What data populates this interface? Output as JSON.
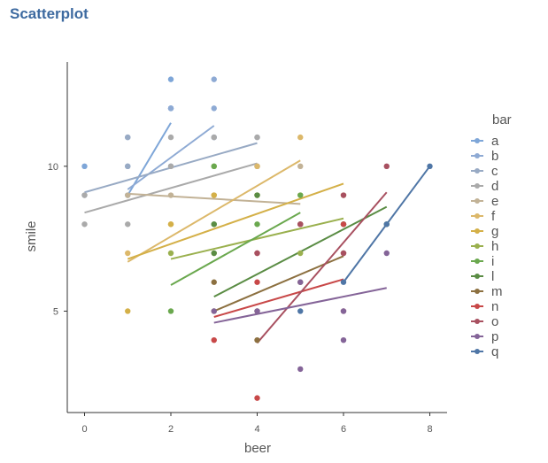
{
  "chart_data": {
    "type": "scatter",
    "title": "Scatterplot",
    "xlabel": "beer",
    "ylabel": "smile",
    "xlim": [
      -0.4,
      8.4
    ],
    "ylim": [
      1.5,
      13.6
    ],
    "x_ticks": [
      0,
      2,
      4,
      6,
      8
    ],
    "y_ticks": [
      5,
      10
    ],
    "grid": false,
    "legend_title": "bar",
    "legend_position": "right",
    "series": [
      {
        "name": "a",
        "color": "#7ea6d8",
        "points": [
          [
            0,
            10
          ],
          [
            1,
            9
          ],
          [
            2,
            12
          ],
          [
            2,
            12
          ],
          [
            2,
            13
          ]
        ],
        "fit": [
          [
            1,
            9
          ],
          [
            2,
            11.5
          ]
        ]
      },
      {
        "name": "b",
        "color": "#8eaad4",
        "points": [
          [
            1,
            11
          ],
          [
            1,
            10
          ],
          [
            2,
            12
          ],
          [
            3,
            12
          ],
          [
            3,
            13
          ],
          [
            3,
            11
          ]
        ],
        "fit": [
          [
            1,
            9.2
          ],
          [
            3,
            11.4
          ]
        ]
      },
      {
        "name": "c",
        "color": "#98aac4",
        "points": [
          [
            0,
            9
          ],
          [
            1,
            10
          ],
          [
            1,
            11
          ],
          [
            2,
            10
          ],
          [
            3,
            11
          ],
          [
            4,
            11
          ]
        ],
        "fit": [
          [
            0,
            9.1
          ],
          [
            4,
            10.8
          ]
        ]
      },
      {
        "name": "d",
        "color": "#aaaaaa",
        "points": [
          [
            0,
            8
          ],
          [
            0,
            9
          ],
          [
            1,
            8
          ],
          [
            2,
            10
          ],
          [
            2,
            11
          ],
          [
            3,
            11
          ],
          [
            4,
            10
          ],
          [
            4,
            11
          ]
        ],
        "fit": [
          [
            0,
            8.4
          ],
          [
            4,
            10.1
          ]
        ]
      },
      {
        "name": "e",
        "color": "#c2b296",
        "points": [
          [
            1,
            9
          ],
          [
            2,
            9
          ],
          [
            3,
            9
          ],
          [
            4,
            10
          ],
          [
            5,
            10
          ]
        ],
        "fit": [
          [
            1,
            9.05
          ],
          [
            5,
            8.7
          ]
        ]
      },
      {
        "name": "f",
        "color": "#dcb86a",
        "points": [
          [
            1,
            7
          ],
          [
            2,
            8
          ],
          [
            3,
            9
          ],
          [
            4,
            10
          ],
          [
            5,
            11
          ]
        ],
        "fit": [
          [
            1,
            6.7
          ],
          [
            5,
            10.2
          ]
        ]
      },
      {
        "name": "g",
        "color": "#d4b048",
        "points": [
          [
            1,
            5
          ],
          [
            2,
            8
          ],
          [
            3,
            9
          ],
          [
            4,
            9
          ],
          [
            5,
            9
          ],
          [
            6,
            9
          ]
        ],
        "fit": [
          [
            1,
            6.8
          ],
          [
            6,
            9.4
          ]
        ]
      },
      {
        "name": "h",
        "color": "#9ab04e",
        "points": [
          [
            2,
            7
          ],
          [
            3,
            7
          ],
          [
            3,
            10
          ],
          [
            4,
            9
          ],
          [
            5,
            7
          ],
          [
            6,
            8
          ]
        ],
        "fit": [
          [
            2,
            6.8
          ],
          [
            6,
            8.2
          ]
        ]
      },
      {
        "name": "i",
        "color": "#6aa84e",
        "points": [
          [
            2,
            5
          ],
          [
            3,
            8
          ],
          [
            3,
            10
          ],
          [
            4,
            8
          ],
          [
            5,
            9
          ]
        ],
        "fit": [
          [
            2,
            5.9
          ],
          [
            5,
            8.4
          ]
        ]
      },
      {
        "name": "l",
        "color": "#5a8c44",
        "points": [
          [
            3,
            7
          ],
          [
            3,
            8
          ],
          [
            4,
            9
          ],
          [
            5,
            8
          ],
          [
            6,
            8
          ],
          [
            7,
            8
          ]
        ],
        "fit": [
          [
            3,
            5.5
          ],
          [
            7,
            8.6
          ]
        ]
      },
      {
        "name": "m",
        "color": "#8c7040",
        "points": [
          [
            3,
            6
          ],
          [
            3,
            5
          ],
          [
            4,
            5
          ],
          [
            4,
            4
          ],
          [
            5,
            6
          ],
          [
            6,
            7
          ]
        ],
        "fit": [
          [
            3,
            5
          ],
          [
            6,
            6.9
          ]
        ]
      },
      {
        "name": "n",
        "color": "#c84848",
        "points": [
          [
            3,
            4
          ],
          [
            4,
            2
          ],
          [
            4,
            6
          ],
          [
            4,
            7
          ],
          [
            5,
            8
          ],
          [
            6,
            8
          ]
        ],
        "fit": [
          [
            3,
            4.8
          ],
          [
            6,
            6.1
          ]
        ]
      },
      {
        "name": "o",
        "color": "#a85060",
        "points": [
          [
            4,
            7
          ],
          [
            5,
            8
          ],
          [
            6,
            9
          ],
          [
            6,
            7
          ],
          [
            6,
            5
          ],
          [
            7,
            10
          ]
        ],
        "fit": [
          [
            4,
            3.9
          ],
          [
            7,
            9.1
          ]
        ]
      },
      {
        "name": "p",
        "color": "#846498",
        "points": [
          [
            3,
            5
          ],
          [
            4,
            5
          ],
          [
            5,
            3
          ],
          [
            5,
            6
          ],
          [
            6,
            5
          ],
          [
            6,
            4
          ],
          [
            7,
            7
          ]
        ],
        "fit": [
          [
            3,
            4.6
          ],
          [
            7,
            5.8
          ]
        ]
      },
      {
        "name": "q",
        "color": "#4f76a6",
        "points": [
          [
            5,
            5
          ],
          [
            6,
            6
          ],
          [
            7,
            8
          ],
          [
            8,
            10
          ]
        ],
        "fit": [
          [
            6,
            6
          ],
          [
            8,
            10
          ]
        ]
      }
    ]
  }
}
